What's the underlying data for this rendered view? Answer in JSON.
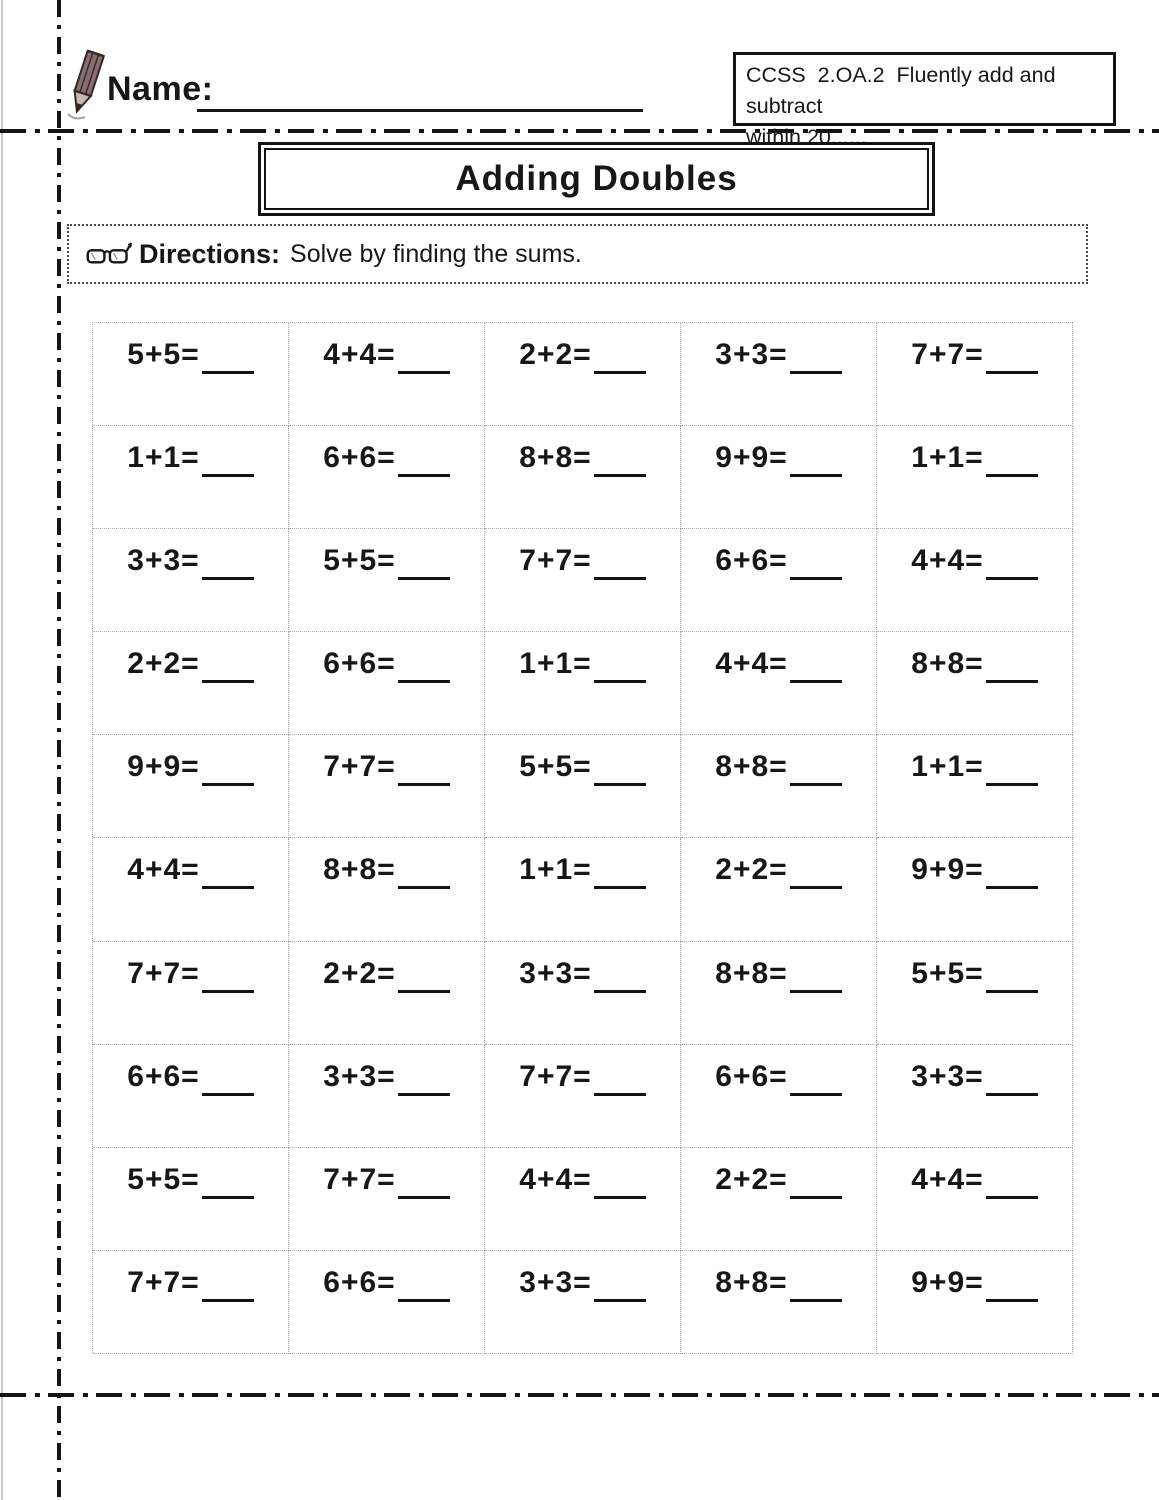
{
  "header": {
    "name_label": "Name:",
    "ccss_line1": "CCSS  2.OA.2  Fluently add and subtract",
    "ccss_line2": "within 20......"
  },
  "title": "Adding Doubles",
  "directions": {
    "label": "Directions:",
    "text": "Solve by finding the sums."
  },
  "worksheet": {
    "columns": 5,
    "rows": 10,
    "blank_display": "____",
    "problems": [
      [
        "5+5=",
        "4+4=",
        "2+2=",
        "3+3=",
        "7+7="
      ],
      [
        "1+1=",
        "6+6=",
        "8+8=",
        "9+9=",
        "1+1="
      ],
      [
        "3+3=",
        "5+5=",
        "7+7=",
        "6+6=",
        "4+4="
      ],
      [
        "2+2=",
        "6+6=",
        "1+1=",
        "4+4=",
        "8+8="
      ],
      [
        "9+9=",
        "7+7=",
        "5+5=",
        "8+8=",
        "1+1="
      ],
      [
        "4+4=",
        "8+8=",
        "1+1=",
        "2+2=",
        "9+9="
      ],
      [
        "7+7=",
        "2+2=",
        "3+3=",
        "8+8=",
        "5+5="
      ],
      [
        "6+6=",
        "3+3=",
        "7+7=",
        "6+6=",
        "3+3="
      ],
      [
        "5+5=",
        "7+7=",
        "4+4=",
        "2+2=",
        "4+4="
      ],
      [
        "7+7=",
        "6+6=",
        "3+3=",
        "8+8=",
        "9+9="
      ]
    ]
  },
  "icons": {
    "name_icon": "pencil",
    "directions_icon": "eyeglasses"
  },
  "colors": {
    "ink": "#171717",
    "pencil_body": "#8a6e6e",
    "pencil_wood": "#c9b8b2",
    "grid_border": "#ababab"
  }
}
